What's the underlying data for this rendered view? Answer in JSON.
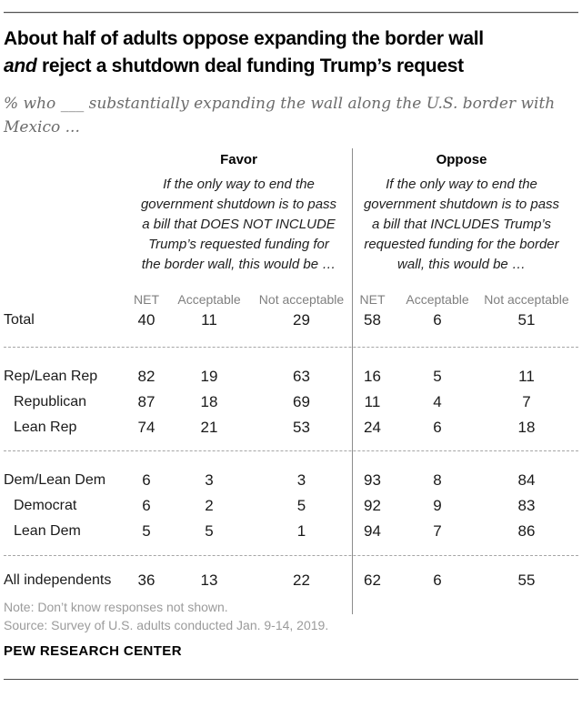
{
  "header": {
    "title_line1": "About half of adults oppose expanding the border wall",
    "title_line2_italic": "and",
    "title_line2_rest": " reject a shutdown deal funding Trump’s request",
    "subtitle": "% who ___ substantially expanding the wall along the U.S. border with Mexico ..."
  },
  "chart_data": {
    "type": "table",
    "title": "About half of adults oppose expanding the border wall and reject a shutdown deal funding Trump’s request",
    "subtitle": "% who ___ substantially expanding the wall along the U.S. border with Mexico ...",
    "column_groups": [
      {
        "label": "Favor",
        "description": "If the only way to end the government shutdown is to pass a bill that DOES NOT INCLUDE Trump’s requested funding for the border wall, this would be …"
      },
      {
        "label": "Oppose",
        "description": "If the only way to end the government shutdown is to pass a bill that INCLUDES Trump’s requested funding for the border wall, this would be …"
      }
    ],
    "sub_columns": [
      "NET",
      "Acceptable",
      "Not acceptable",
      "NET",
      "Acceptable",
      "Not acceptable"
    ],
    "rows": [
      {
        "label": "Total",
        "indent": false,
        "values": [
          40,
          11,
          29,
          58,
          6,
          51
        ]
      },
      {
        "label": "Rep/Lean Rep",
        "indent": false,
        "values": [
          82,
          19,
          63,
          16,
          5,
          11
        ]
      },
      {
        "label": "Republican",
        "indent": true,
        "values": [
          87,
          18,
          69,
          11,
          4,
          7
        ]
      },
      {
        "label": "Lean Rep",
        "indent": true,
        "values": [
          74,
          21,
          53,
          24,
          6,
          18
        ]
      },
      {
        "label": "Dem/Lean Dem",
        "indent": false,
        "values": [
          6,
          3,
          3,
          93,
          8,
          84
        ]
      },
      {
        "label": "Democrat",
        "indent": true,
        "values": [
          6,
          2,
          5,
          92,
          9,
          83
        ]
      },
      {
        "label": "Lean Dem",
        "indent": true,
        "values": [
          5,
          5,
          1,
          94,
          7,
          86
        ]
      },
      {
        "label": "All independents",
        "indent": false,
        "values": [
          36,
          13,
          22,
          62,
          6,
          55
        ]
      }
    ],
    "colors": {
      "text": "#1a1a1a",
      "muted": "#7f7f7f",
      "divider": "#8c8c8c"
    }
  },
  "footer": {
    "note": "Note: Don’t know responses not shown.",
    "source": "Source: Survey of U.S. adults conducted Jan. 9-14, 2019.",
    "brand": "PEW RESEARCH CENTER"
  }
}
